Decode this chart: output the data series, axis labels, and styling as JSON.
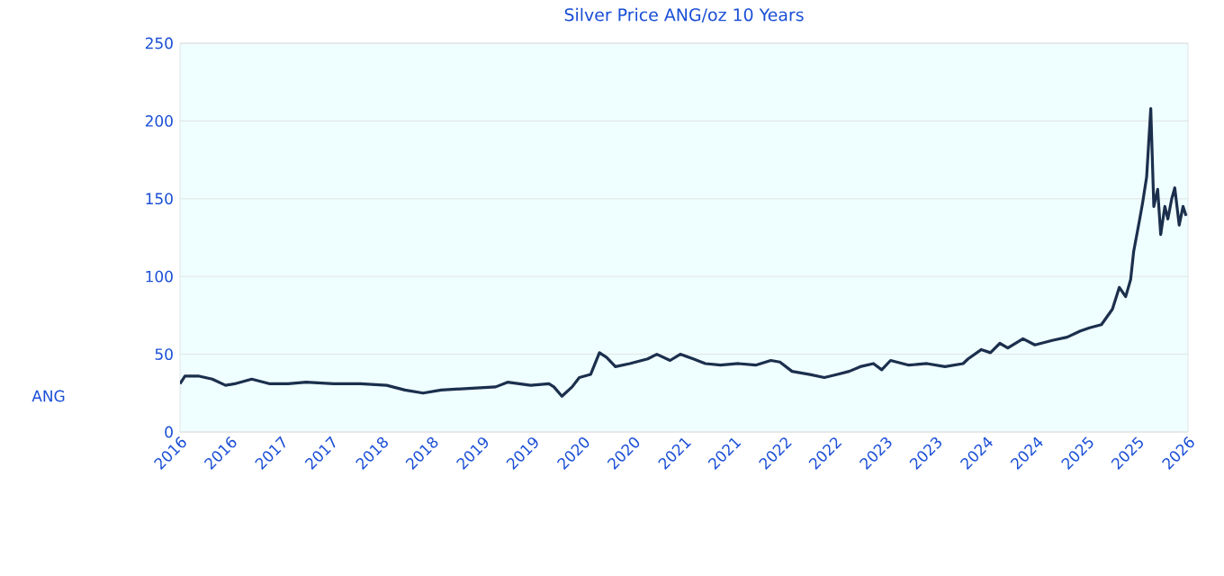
{
  "chart_data": {
    "type": "line",
    "title": "Silver Price ANG/oz 10 Years",
    "annotations": [
      "ANG"
    ],
    "x": [
      "2016-02-06",
      "2016-02-24",
      "2016-04-12",
      "2016-06-02",
      "2016-07-20",
      "2016-08-22",
      "2016-10-23",
      "2016-12-28",
      "2017-03-04",
      "2017-05-08",
      "2017-08-15",
      "2017-11-21",
      "2018-02-24",
      "2018-05-01",
      "2018-07-06",
      "2018-09-09",
      "2018-12-17",
      "2019-03-26",
      "2019-05-08",
      "2019-07-31",
      "2019-10-05",
      "2019-10-23",
      "2019-11-21",
      "2019-12-28",
      "2020-01-23",
      "2020-03-04",
      "2020-04-05",
      "2020-05-01",
      "2020-06-02",
      "2020-07-24",
      "2020-09-27",
      "2020-10-30",
      "2020-12-17",
      "2021-01-23",
      "2021-03-11",
      "2021-04-24",
      "2021-06-18",
      "2021-08-22",
      "2021-10-23",
      "2021-12-17",
      "2022-01-19",
      "2022-03-04",
      "2022-05-08",
      "2022-06-29",
      "2022-08-15",
      "2022-09-27",
      "2022-11-06",
      "2022-12-24",
      "2023-01-23",
      "2023-02-24",
      "2023-05-01",
      "2023-07-06",
      "2023-09-09",
      "2023-11-14",
      "2023-12-02",
      "2024-01-19",
      "2024-02-21",
      "2024-03-26",
      "2024-04-24",
      "2024-06-18",
      "2024-07-31",
      "2024-10-05",
      "2024-11-25",
      "2025-01-12",
      "2025-02-14",
      "2025-03-29",
      "2025-05-08",
      "2025-06-02",
      "2025-06-25",
      "2025-07-13",
      "2025-07-24",
      "2025-08-15",
      "2025-08-26",
      "2025-09-09",
      "2025-09-24",
      "2025-10-05",
      "2025-10-19",
      "2025-10-30",
      "2025-11-14",
      "2025-11-25",
      "2025-12-09",
      "2025-12-20",
      "2026-01-05",
      "2026-01-19",
      "2026-01-30"
    ],
    "series": [
      {
        "color": "#1b2f4d",
        "values": [
          31,
          36,
          36,
          34,
          30,
          31,
          34,
          31,
          31,
          32,
          31,
          31,
          30,
          27,
          25,
          27,
          28,
          29,
          32,
          30,
          31,
          29,
          23,
          29,
          35,
          37,
          51,
          48,
          42,
          44,
          47,
          50,
          46,
          50,
          47,
          44,
          43,
          44,
          43,
          46,
          45,
          39,
          37,
          35,
          37,
          39,
          42,
          44,
          40,
          46,
          43,
          44,
          42,
          44,
          47,
          53,
          51,
          57,
          54,
          60,
          56,
          59,
          61,
          65,
          67,
          69,
          79,
          93,
          87,
          98,
          116,
          137,
          148,
          164,
          208,
          145,
          156,
          127,
          145,
          137,
          150,
          157,
          133,
          145,
          139
        ]
      }
    ],
    "xlim": [
      "2016-02-06",
      "2026-02-06"
    ],
    "xticks": [
      {
        "value": "2016-02-06",
        "label": "2016"
      },
      {
        "value": "2016-08-06",
        "label": "2016"
      },
      {
        "value": "2017-02-06",
        "label": "2017"
      },
      {
        "value": "2017-08-06",
        "label": "2017"
      },
      {
        "value": "2018-02-06",
        "label": "2018"
      },
      {
        "value": "2018-08-06",
        "label": "2018"
      },
      {
        "value": "2019-02-06",
        "label": "2019"
      },
      {
        "value": "2019-08-06",
        "label": "2019"
      },
      {
        "value": "2020-02-06",
        "label": "2020"
      },
      {
        "value": "2020-08-06",
        "label": "2020"
      },
      {
        "value": "2021-02-06",
        "label": "2021"
      },
      {
        "value": "2021-08-06",
        "label": "2021"
      },
      {
        "value": "2022-02-06",
        "label": "2022"
      },
      {
        "value": "2022-08-06",
        "label": "2022"
      },
      {
        "value": "2023-02-06",
        "label": "2023"
      },
      {
        "value": "2023-08-06",
        "label": "2023"
      },
      {
        "value": "2024-02-06",
        "label": "2024"
      },
      {
        "value": "2024-08-06",
        "label": "2024"
      },
      {
        "value": "2025-02-06",
        "label": "2025"
      },
      {
        "value": "2025-08-06",
        "label": "2025"
      },
      {
        "value": "2026-02-06",
        "label": "2026"
      }
    ],
    "ylim": [
      0,
      250
    ],
    "yticks": [
      0,
      50,
      100,
      150,
      200,
      250
    ],
    "grid": "y"
  }
}
